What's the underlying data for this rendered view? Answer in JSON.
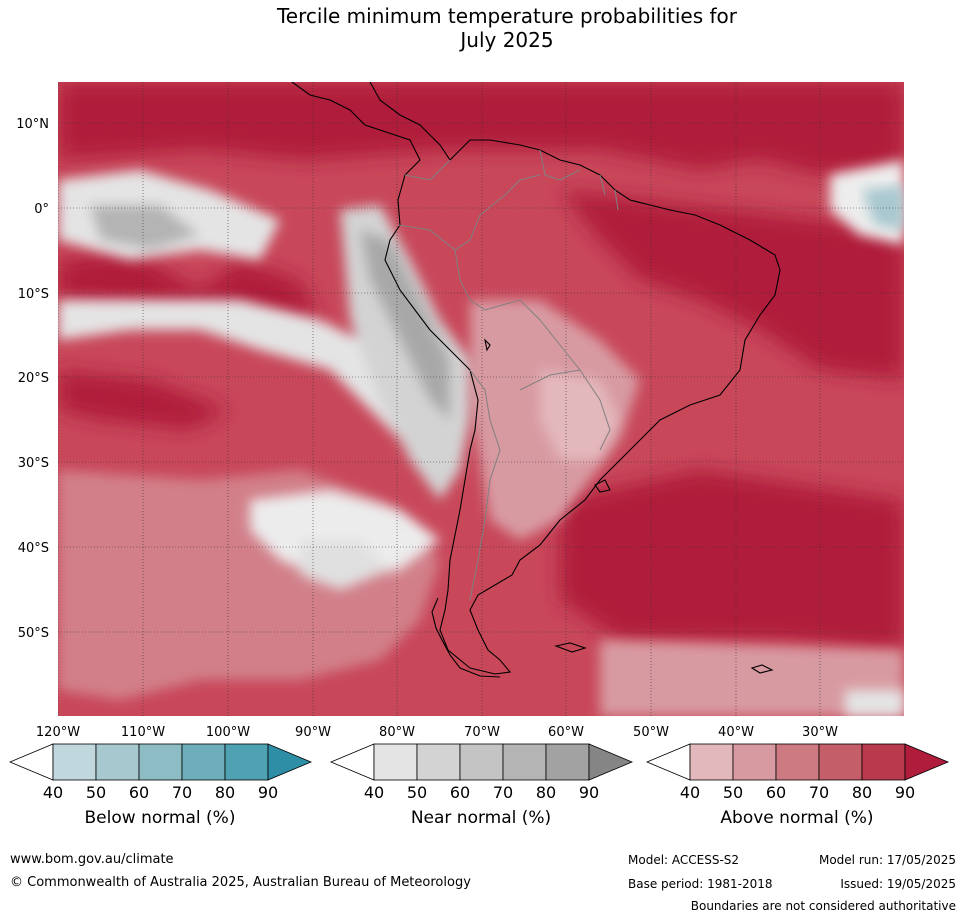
{
  "title": {
    "line1": "Tercile minimum temperature probabilities for",
    "line2": "July 2025"
  },
  "map": {
    "latitude_labels": [
      "10°N",
      "0°",
      "10°S",
      "20°S",
      "30°S",
      "40°S",
      "50°S"
    ],
    "longitude_labels": [
      "120°W",
      "110°W",
      "100°W",
      "90°W",
      "80°W",
      "70°W",
      "60°W",
      "50°W",
      "40°W",
      "30°W"
    ]
  },
  "colorbars": [
    {
      "label": "Below normal (%)",
      "ticks": [
        "40",
        "50",
        "60",
        "70",
        "80",
        "90"
      ],
      "colors": [
        "#ffffff",
        "#bfd7dd",
        "#a8c8cf",
        "#8ebcc4",
        "#6eaebb",
        "#4fa2b2",
        "#2e8ea6"
      ]
    },
    {
      "label": "Near normal (%)",
      "ticks": [
        "40",
        "50",
        "60",
        "70",
        "80",
        "90"
      ],
      "colors": [
        "#ffffff",
        "#e4e4e4",
        "#d3d3d3",
        "#c4c4c4",
        "#b4b4b4",
        "#a2a2a2",
        "#858585"
      ]
    },
    {
      "label": "Above normal (%)",
      "ticks": [
        "40",
        "50",
        "60",
        "70",
        "80",
        "90"
      ],
      "colors": [
        "#ffffff",
        "#e3b8bc",
        "#d89aa1",
        "#cd7a83",
        "#c45e69",
        "#b93a4d",
        "#b01c3b"
      ]
    }
  ],
  "footer": {
    "website": "www.bom.gov.au/climate",
    "copyright": "© Commonwealth of Australia 2025, Australian Bureau of Meteorology",
    "model": "Model: ACCESS-S2",
    "model_run": "Model run: 17/05/2025",
    "base_period": "Base period: 1981-2018",
    "issued": "Issued: 19/05/2025",
    "disclaimer": "Boundaries are not considered authoritative"
  }
}
